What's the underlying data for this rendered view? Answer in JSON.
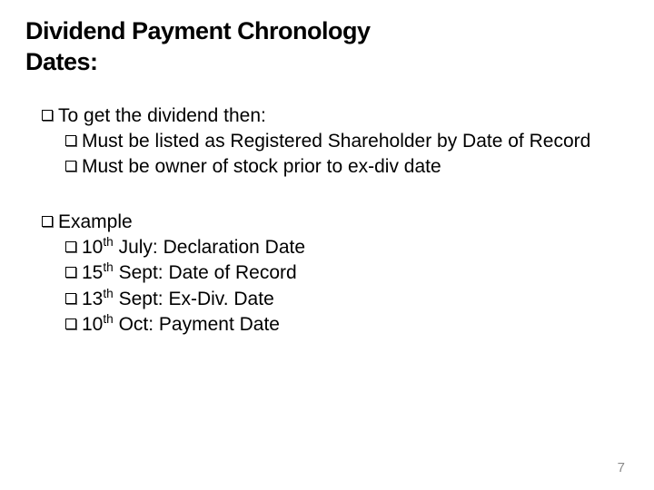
{
  "title_line1": "Dividend Payment Chronology",
  "title_line2": "Dates:",
  "section1": {
    "heading": "To get the dividend then:",
    "items": [
      "Must be listed as Registered Shareholder by Date of Record",
      "Must be owner of stock prior to ex-div date"
    ]
  },
  "section2": {
    "heading": "Example",
    "items": [
      {
        "ord": "10",
        "suffix": "th",
        "rest": " July: Declaration Date"
      },
      {
        "ord": "15",
        "suffix": "th",
        "rest": " Sept: Date of Record"
      },
      {
        "ord": "13",
        "suffix": "th",
        "rest": " Sept: Ex-Div. Date"
      },
      {
        "ord": "10",
        "suffix": "th",
        "rest": " Oct: Payment Date"
      }
    ]
  },
  "page_number": "7",
  "colors": {
    "background": "#ffffff",
    "text": "#000000",
    "page_number": "#8a8a8a"
  },
  "fonts": {
    "title_size_pt": 27,
    "body_size_pt": 21,
    "title_weight": 900,
    "body_weight": 400
  }
}
